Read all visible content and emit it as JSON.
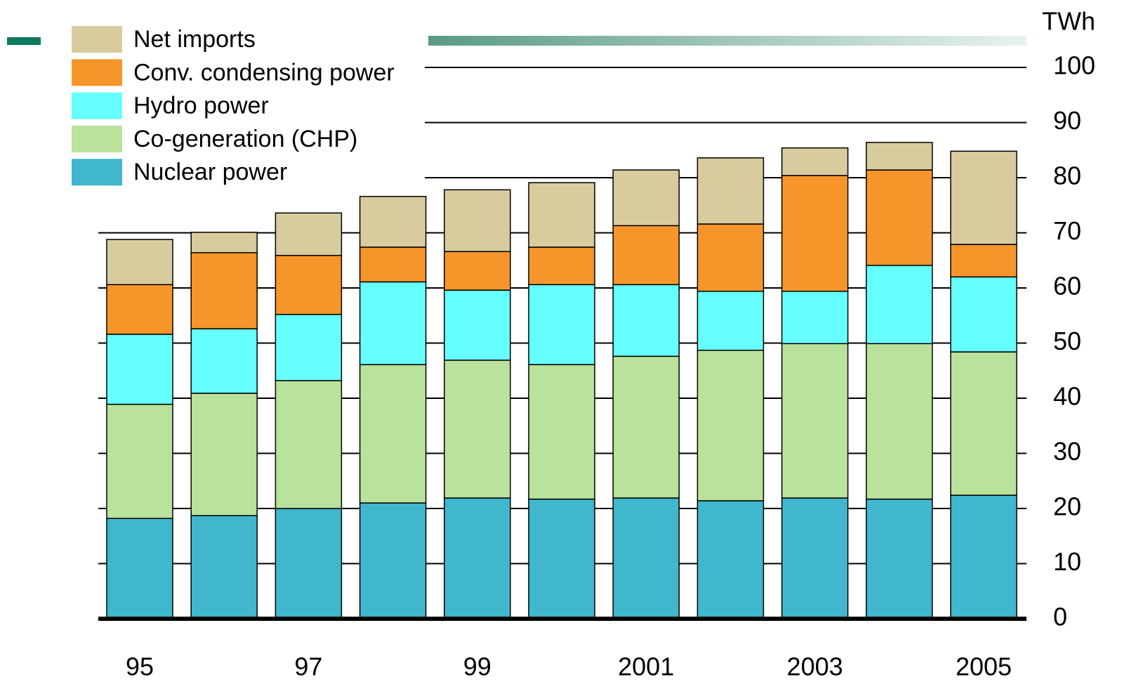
{
  "chart_data": {
    "type": "stacked_bar",
    "y_axis_label": "TWh",
    "categories": [
      "95",
      null,
      "97",
      null,
      "99",
      null,
      "2001",
      null,
      "2003",
      null,
      "2005"
    ],
    "series": [
      {
        "name": "Nuclear power",
        "color": "#40b7cc",
        "values": [
          18.2,
          18.7,
          20.0,
          21.0,
          21.9,
          21.7,
          21.9,
          21.4,
          21.9,
          21.7,
          22.4
        ]
      },
      {
        "name": "Co-generation (CHP)",
        "color": "#b9e29c",
        "values": [
          20.7,
          22.2,
          23.2,
          25.1,
          25.0,
          24.4,
          25.7,
          27.3,
          28.0,
          28.2,
          26.0
        ]
      },
      {
        "name": "Hydro power",
        "color": "#66ffff",
        "values": [
          12.7,
          11.7,
          12.0,
          15.0,
          12.7,
          14.5,
          13.0,
          10.7,
          9.5,
          14.2,
          13.6
        ]
      },
      {
        "name": "Conv. condensing power",
        "color": "#f6962a",
        "values": [
          9.0,
          13.8,
          10.7,
          6.3,
          7.0,
          6.8,
          10.7,
          12.2,
          21.0,
          17.3,
          5.9
        ]
      },
      {
        "name": "Net imports",
        "color": "#d8cb9e",
        "values": [
          8.2,
          3.7,
          7.7,
          9.2,
          11.2,
          11.7,
          10.1,
          12.0,
          5.0,
          5.0,
          16.9
        ]
      }
    ],
    "ylim": [
      0,
      100
    ],
    "yticks": [
      0,
      10,
      20,
      30,
      40,
      50,
      60,
      70,
      80,
      90,
      100
    ],
    "grid": true
  }
}
